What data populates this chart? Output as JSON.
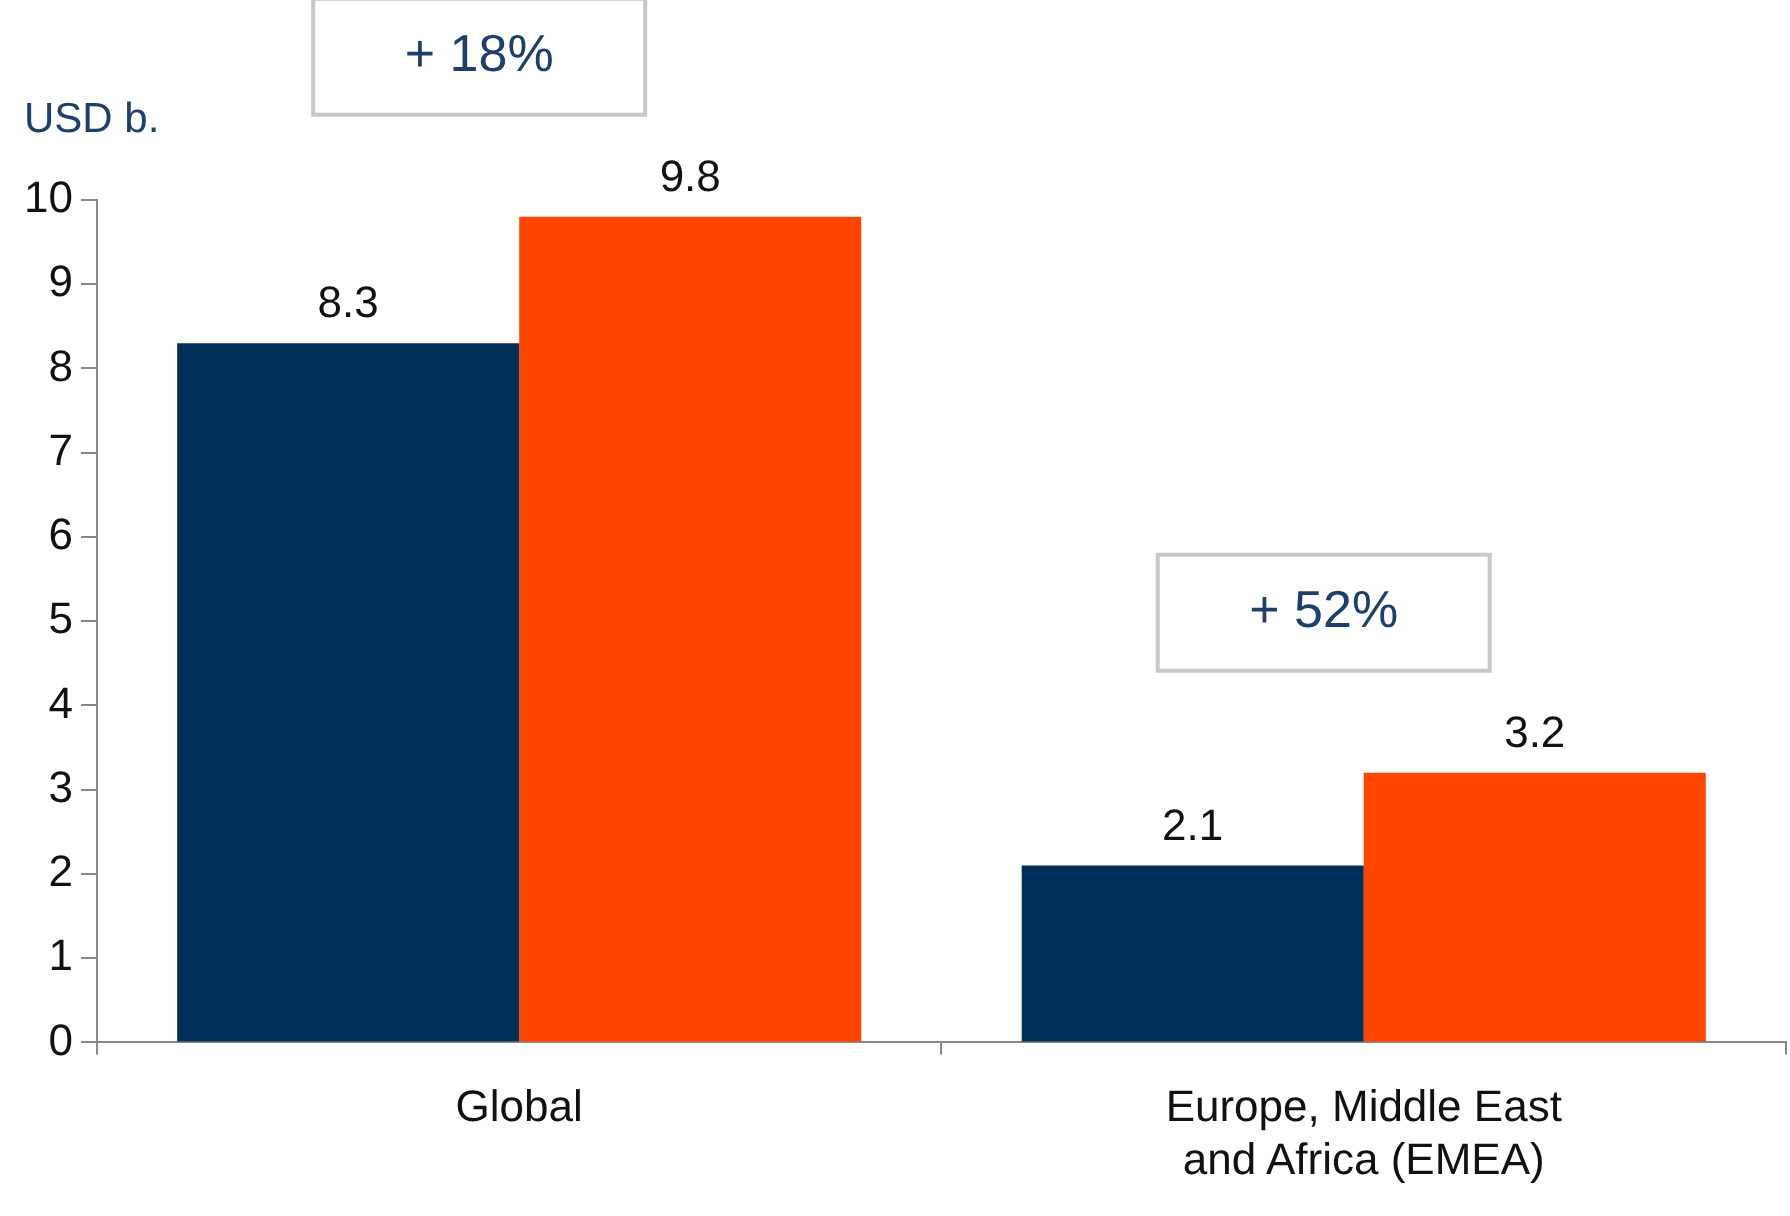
{
  "chart_data": {
    "type": "bar",
    "ylabel": "USD b.",
    "categories": [
      "Global",
      "Europe, Middle East and Africa (EMEA)"
    ],
    "series": [
      {
        "color": "#003057",
        "values": [
          8.3,
          2.1
        ]
      },
      {
        "color": "#ff4500",
        "values": [
          9.8,
          3.2
        ]
      }
    ],
    "ylim": [
      0,
      10
    ],
    "yticks": [
      0,
      1,
      2,
      3,
      4,
      5,
      6,
      7,
      8,
      9,
      10
    ],
    "grid": false,
    "legend": false,
    "data_labels": true,
    "annotations": [
      "+ 18%",
      "+ 52%"
    ]
  }
}
